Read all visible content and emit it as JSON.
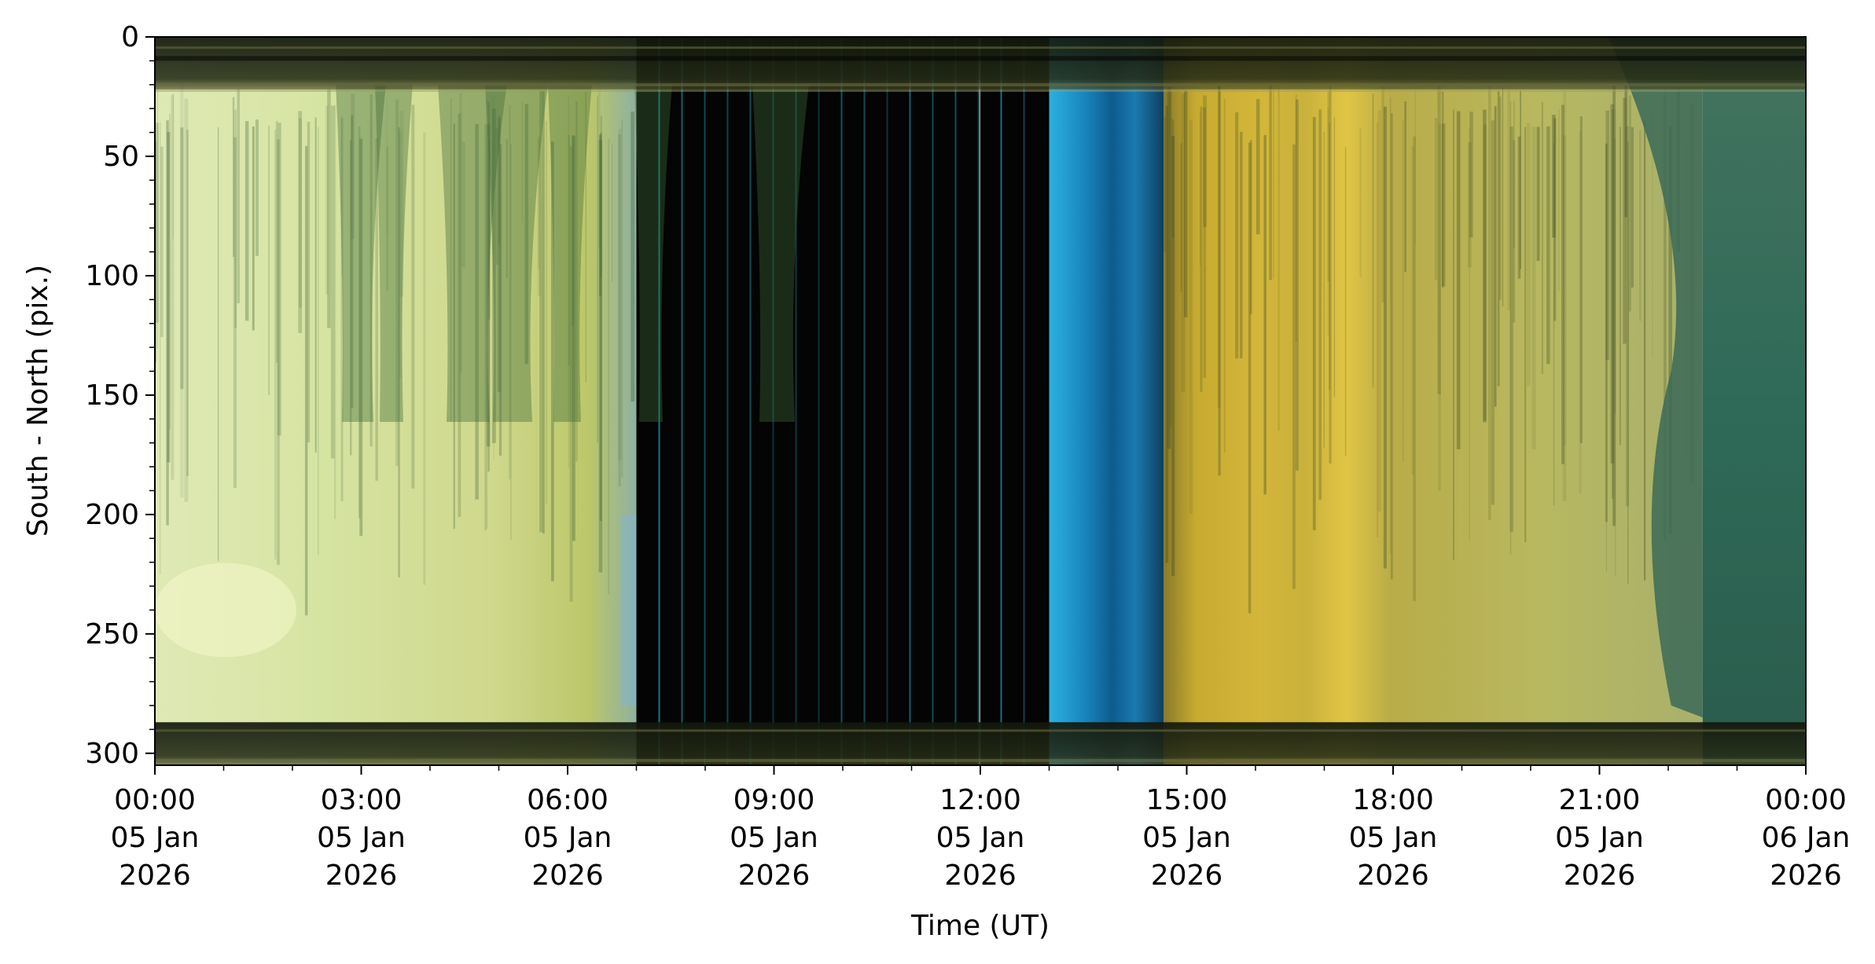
{
  "chart_data": {
    "type": "heatmap",
    "title": "",
    "xlabel": "Time (UT)",
    "ylabel": "South - North (pix.)",
    "x_range": [
      "2026-01-05T00:00",
      "2026-01-06T00:00"
    ],
    "ylim": [
      305,
      0
    ],
    "y_inverted": true,
    "grid": false,
    "x_ticks": [
      {
        "t": "2026-01-05T00:00",
        "label": [
          "00:00",
          "05 Jan",
          "2026"
        ]
      },
      {
        "t": "2026-01-05T03:00",
        "label": [
          "03:00",
          "05 Jan",
          "2026"
        ]
      },
      {
        "t": "2026-01-05T06:00",
        "label": [
          "06:00",
          "05 Jan",
          "2026"
        ]
      },
      {
        "t": "2026-01-05T09:00",
        "label": [
          "09:00",
          "05 Jan",
          "2026"
        ]
      },
      {
        "t": "2026-01-05T12:00",
        "label": [
          "12:00",
          "05 Jan",
          "2026"
        ]
      },
      {
        "t": "2026-01-05T15:00",
        "label": [
          "15:00",
          "05 Jan",
          "2026"
        ]
      },
      {
        "t": "2026-01-05T18:00",
        "label": [
          "18:00",
          "05 Jan",
          "2026"
        ]
      },
      {
        "t": "2026-01-05T21:00",
        "label": [
          "21:00",
          "05 Jan",
          "2026"
        ]
      },
      {
        "t": "2026-01-06T00:00",
        "label": [
          "00:00",
          "06 Jan",
          "2026"
        ]
      }
    ],
    "y_ticks": [
      0,
      50,
      100,
      150,
      200,
      250,
      300
    ],
    "image_segments": [
      {
        "start": "2026-01-05T00:00",
        "end": "2026-01-05T07:00",
        "colors": [
          "#d9e8a6",
          "#c2d48a",
          "#aebb62"
        ],
        "streaks": "#44653a"
      },
      {
        "start": "2026-01-05T07:00",
        "end": "2026-01-05T13:00",
        "colors": [
          "#020302",
          "#020302",
          "#020302"
        ],
        "lines": "#1aa6c8"
      },
      {
        "start": "2026-01-05T13:00",
        "end": "2026-01-05T14:40",
        "colors": [
          "#2aa8d6",
          "#126fa0",
          "#0b4b78"
        ]
      },
      {
        "start": "2026-01-05T14:40",
        "end": "2026-01-05T22:30",
        "colors": [
          "#c9b13c",
          "#b9b55a",
          "#a7ad68"
        ],
        "streaks": "#3d4a22"
      },
      {
        "start": "2026-01-05T22:30",
        "end": "2026-01-06T00:00",
        "colors": [
          "#3d6a5a",
          "#2e6655",
          "#2b5f4f"
        ]
      }
    ],
    "dark_bands": [
      [
        0,
        22
      ],
      [
        287,
        305
      ]
    ]
  }
}
